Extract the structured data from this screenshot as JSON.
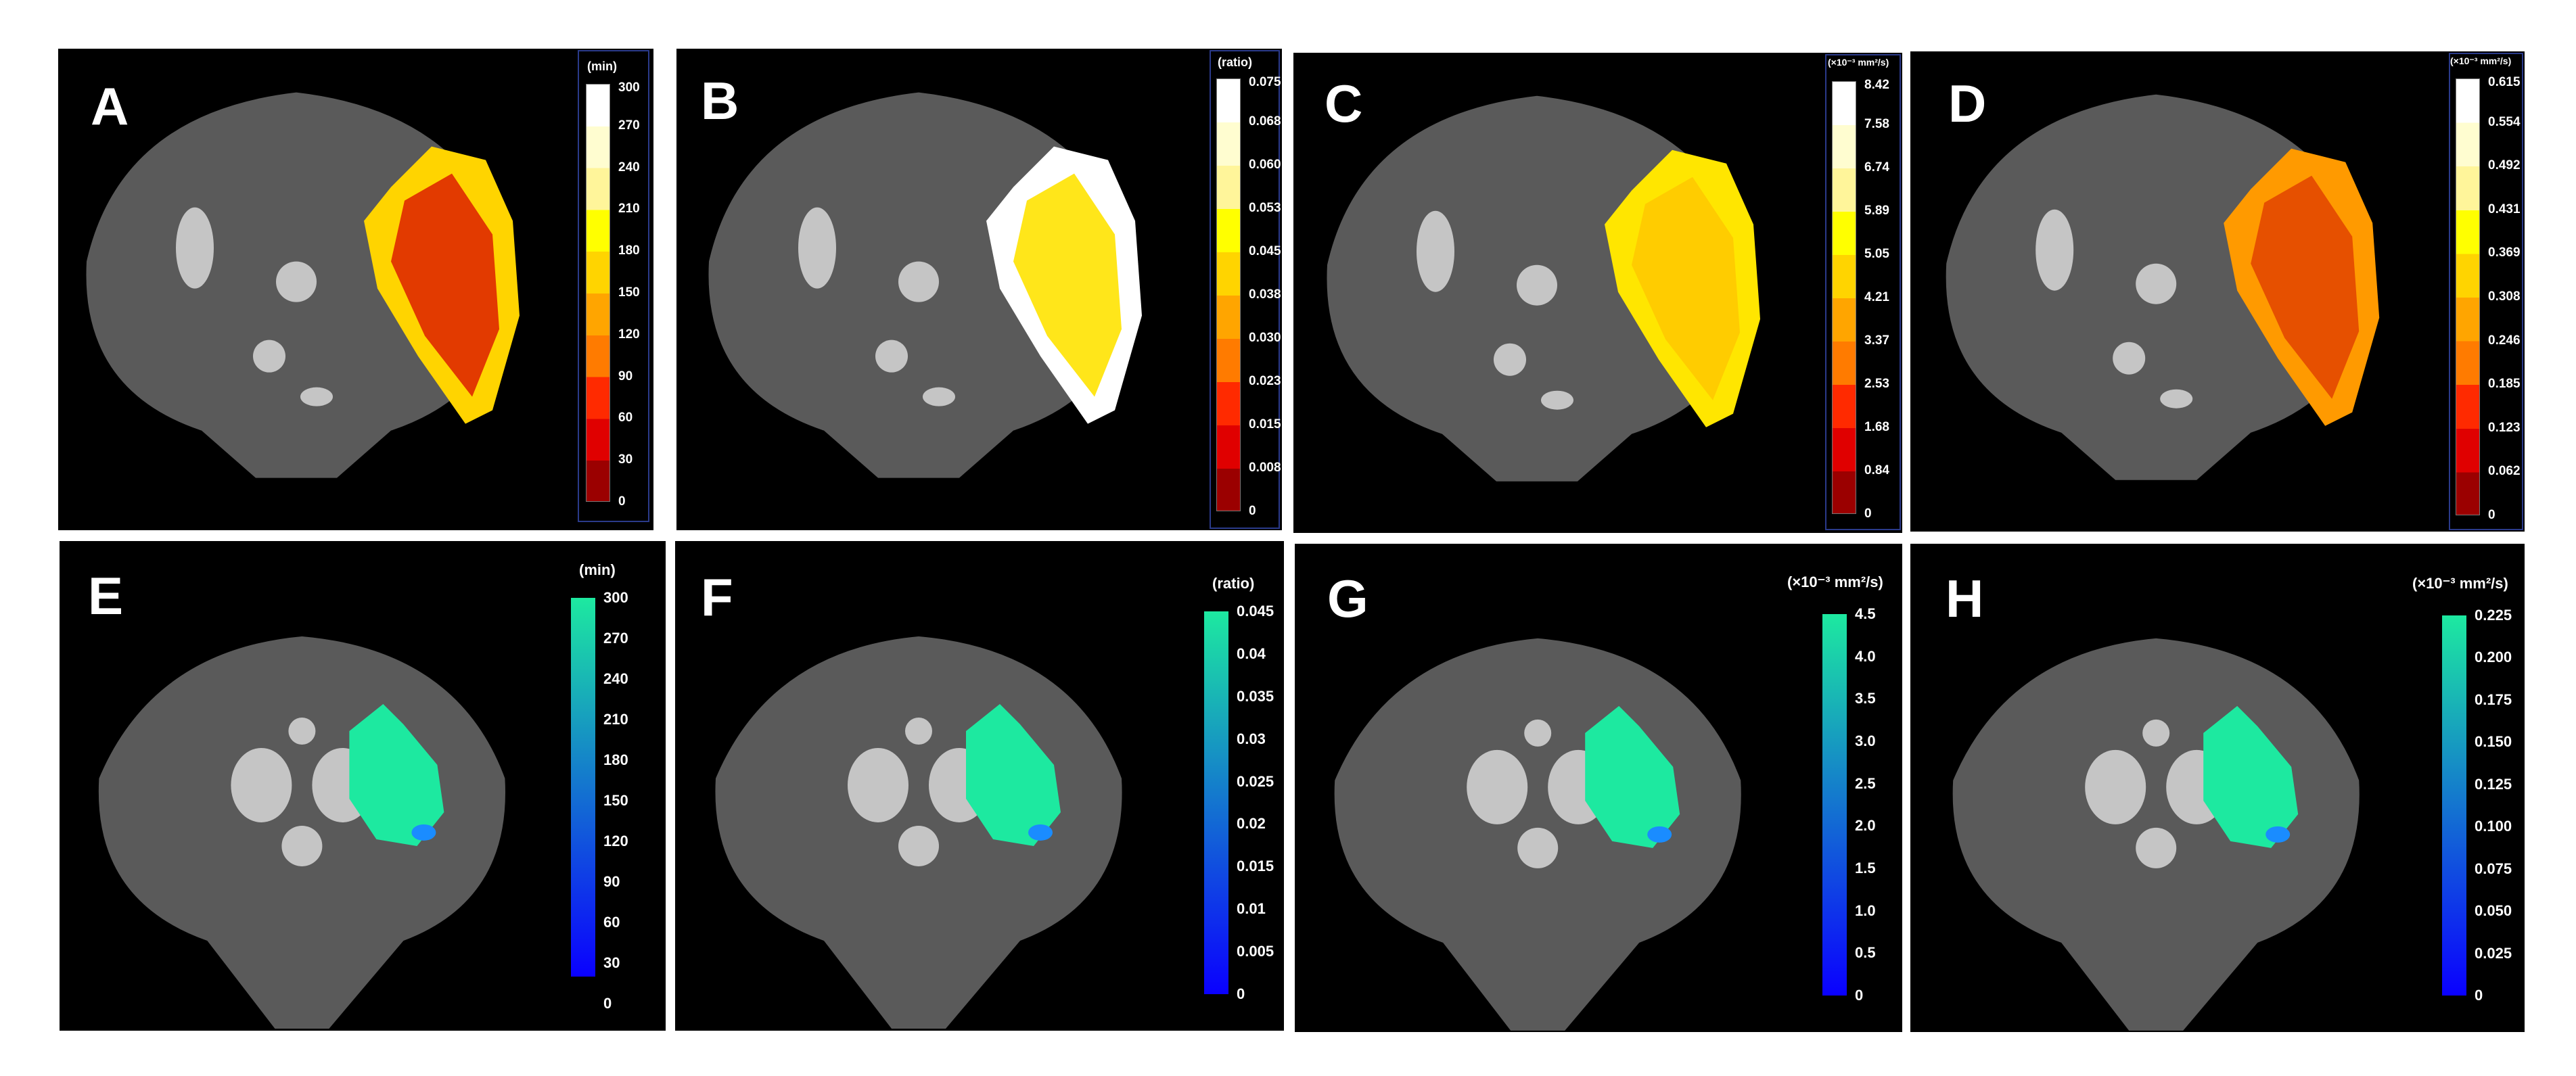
{
  "panels": [
    {
      "label": "A",
      "unit": "(min)",
      "ticks": [
        "300",
        "270",
        "240",
        "210",
        "180",
        "150",
        "120",
        "90",
        "60",
        "30",
        "0"
      ],
      "overlay": "hot",
      "colorbar": "hot"
    },
    {
      "label": "B",
      "unit": "(ratio)",
      "ticks": [
        "0.075",
        "0.068",
        "0.060",
        "0.053",
        "0.045",
        "0.038",
        "0.030",
        "0.023",
        "0.015",
        "0.008",
        "0"
      ],
      "overlay": "hot-light",
      "colorbar": "hot"
    },
    {
      "label": "C",
      "unit": "(×10⁻³ mm²/s)",
      "ticks": [
        "8.42",
        "7.58",
        "6.74",
        "5.89",
        "5.05",
        "4.21",
        "3.37",
        "2.53",
        "1.68",
        "0.84",
        "0"
      ],
      "overlay": "yellow",
      "colorbar": "hot"
    },
    {
      "label": "D",
      "unit": "(×10⁻³ mm²/s)",
      "ticks": [
        "0.615",
        "0.554",
        "0.492",
        "0.431",
        "0.369",
        "0.308",
        "0.246",
        "0.185",
        "0.123",
        "0.062",
        "0"
      ],
      "overlay": "hot-orange",
      "colorbar": "hot"
    },
    {
      "label": "E",
      "unit": "(min)",
      "ticks": [
        "300",
        "270",
        "240",
        "210",
        "180",
        "150",
        "120",
        "90",
        "60",
        "30",
        "0"
      ],
      "overlay": "cyan",
      "colorbar": "cool"
    },
    {
      "label": "F",
      "unit": "(ratio)",
      "ticks": [
        "0.045",
        "0.04",
        "0.035",
        "0.03",
        "0.025",
        "0.02",
        "0.015",
        "0.01",
        "0.005",
        "0"
      ],
      "overlay": "cyan",
      "colorbar": "cool"
    },
    {
      "label": "G",
      "unit": "(×10⁻³ mm²/s)",
      "ticks": [
        "4.5",
        "4.0",
        "3.5",
        "3.0",
        "2.5",
        "2.0",
        "1.5",
        "1.0",
        "0.5",
        "0"
      ],
      "overlay": "cyan",
      "colorbar": "cool"
    },
    {
      "label": "H",
      "unit": "(×10⁻³ mm²/s)",
      "ticks": [
        "0.225",
        "0.200",
        "0.175",
        "0.150",
        "0.125",
        "0.100",
        "0.075",
        "0.050",
        "0.025",
        "0"
      ],
      "overlay": "cyan",
      "colorbar": "cool"
    }
  ],
  "colors": {
    "hot_bands": [
      "#ffffff",
      "#fffdd0",
      "#fff59a",
      "#ffff00",
      "#ffd400",
      "#ffa500",
      "#ff7b00",
      "#ff2a00",
      "#e00000",
      "#9b0000",
      "#2a0000"
    ],
    "cool_top": "#1de9a0",
    "cool_bottom": "#0a00ff",
    "brain": "#5a5a5a",
    "brain_light": "#8a8a8a",
    "brain_bright": "#d8d8d8"
  }
}
